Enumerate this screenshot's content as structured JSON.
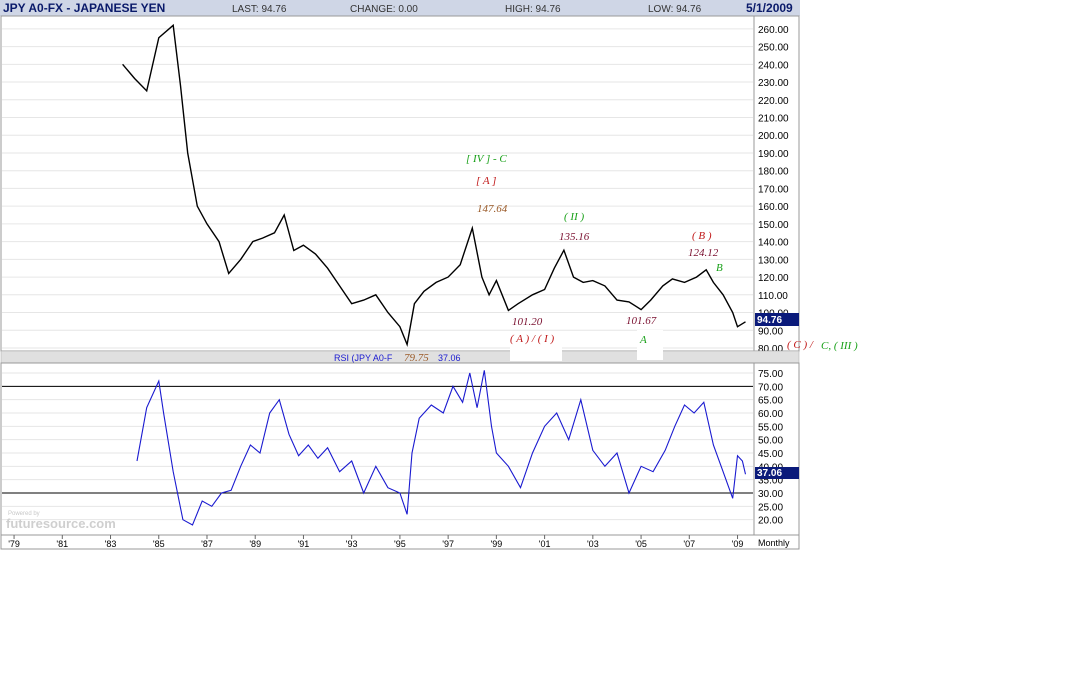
{
  "header": {
    "symbol": "JPY A0-FX - JAPANESE YEN",
    "last": "LAST: 94.76",
    "change": "CHANGE: 0.00",
    "high": "HIGH: 94.76",
    "low": "LOW: 94.76",
    "date": "5/1/2009"
  },
  "colors": {
    "header_bg": "#cfd6e6",
    "header_text": "#0a1a6a",
    "price_line": "#000000",
    "rsi_line": "#1a1ad0",
    "last_badge": "#0a1a7a",
    "wave_green": "#18a018",
    "wave_red": "#c01818",
    "wave_maroon": "#7a1030",
    "wave_orange": "#9a5a28",
    "grid": "#e6e6e6"
  },
  "price_panel": {
    "last_value_label": "94.76",
    "y_ticks": [
      "80.00",
      "90.00",
      "100.00",
      "110.00",
      "120.00",
      "130.00",
      "140.00",
      "150.00",
      "160.00",
      "170.00",
      "180.00",
      "190.00",
      "200.00",
      "210.00",
      "220.00",
      "230.00",
      "240.00",
      "250.00",
      "260.00"
    ]
  },
  "rsi_panel": {
    "label": "RSI (JPY A0-F",
    "value_text": "37.06",
    "last_value_label": "37.06",
    "y_ticks": [
      "20.00",
      "25.00",
      "30.00",
      "35.00",
      "40.00",
      "45.00",
      "50.00",
      "55.00",
      "60.00",
      "65.00",
      "70.00",
      "75.00"
    ],
    "overbought": 70,
    "oversold": 30
  },
  "x_axis": {
    "ticks": [
      "'79",
      "'81",
      "'83",
      "'85",
      "'87",
      "'89",
      "'91",
      "'93",
      "'95",
      "'97",
      "'99",
      "'01",
      "'03",
      "'05",
      "'07",
      "'09"
    ],
    "period": "Monthly"
  },
  "annotations": {
    "wave_IV_C": "[ IV ] - C",
    "wave_A_bracket": "[ A ]",
    "high_147": "147.64",
    "wave_II": "( II )",
    "high_135": "135.16",
    "wave_B_paren": "( B )",
    "high_124": "124.12",
    "wave_B": "B",
    "low_101_20": "101.20",
    "wave_A_I": "( A ) / ( I )",
    "low_101_67": "101.67",
    "wave_A": "A",
    "low_79_75": "79.75",
    "wave_C_red": "( C ) /",
    "wave_C_III": "C, ( III )"
  },
  "watermark": {
    "powered": "Powered by",
    "brand": "futuresource.com"
  },
  "chart_data": [
    {
      "type": "line",
      "title": "JPY A0-FX - JAPANESE YEN",
      "series_desc": "Japanese Yen futures, monthly",
      "ylim": [
        80,
        265
      ],
      "x": [
        1983.5,
        1984.0,
        1984.5,
        1985.0,
        1985.6,
        1985.9,
        1986.2,
        1986.6,
        1987.0,
        1987.5,
        1987.9,
        1988.4,
        1988.9,
        1989.3,
        1989.8,
        1990.2,
        1990.6,
        1991.0,
        1991.5,
        1992.0,
        1992.5,
        1993.0,
        1993.5,
        1994.0,
        1994.5,
        1995.0,
        1995.3,
        1995.6,
        1996.0,
        1996.5,
        1997.0,
        1997.5,
        1998.0,
        1998.4,
        1998.7,
        1999.0,
        1999.5,
        1999.9,
        2000.5,
        2001.0,
        2001.4,
        2001.8,
        2002.2,
        2002.6,
        2003.0,
        2003.5,
        2004.0,
        2004.5,
        2005.0,
        2005.4,
        2005.9,
        2006.3,
        2006.8,
        2007.3,
        2007.7,
        2008.0,
        2008.4,
        2008.8,
        2009.0,
        2009.33
      ],
      "y": [
        240,
        232,
        225,
        255,
        262,
        228,
        190,
        160,
        150,
        140,
        122,
        130,
        140,
        142,
        145,
        155,
        135,
        138,
        133,
        125,
        115,
        105,
        107,
        110,
        100,
        92,
        82,
        105,
        112,
        117,
        120,
        127,
        147.64,
        120,
        110,
        118,
        101.2,
        105,
        110,
        113,
        125,
        135.16,
        120,
        117,
        118,
        115,
        107,
        106,
        101.67,
        107,
        115,
        119,
        117,
        120,
        124.12,
        117,
        110,
        100,
        92,
        94.76
      ]
    },
    {
      "type": "line",
      "title": "RSI (JPY A0-F",
      "ylim": [
        15,
        78
      ],
      "x": [
        1984.1,
        1984.5,
        1985.0,
        1985.2,
        1985.6,
        1986.0,
        1986.4,
        1986.8,
        1987.2,
        1987.6,
        1988.0,
        1988.4,
        1988.8,
        1989.2,
        1989.6,
        1990.0,
        1990.4,
        1990.8,
        1991.2,
        1991.6,
        1992.0,
        1992.5,
        1993.0,
        1993.5,
        1994.0,
        1994.5,
        1995.0,
        1995.3,
        1995.5,
        1995.8,
        1996.3,
        1996.8,
        1997.2,
        1997.6,
        1997.9,
        1998.2,
        1998.5,
        1998.8,
        1999.0,
        1999.5,
        2000.0,
        2000.5,
        2001.0,
        2001.5,
        2002.0,
        2002.5,
        2003.0,
        2003.5,
        2004.0,
        2004.5,
        2005.0,
        2005.5,
        2006.0,
        2006.4,
        2006.8,
        2007.2,
        2007.6,
        2008.0,
        2008.4,
        2008.8,
        2009.0,
        2009.2,
        2009.33
      ],
      "y": [
        42,
        62,
        72,
        60,
        38,
        20,
        18,
        27,
        25,
        30,
        31,
        40,
        48,
        45,
        60,
        65,
        52,
        44,
        48,
        43,
        47,
        38,
        42,
        30,
        40,
        32,
        30,
        22,
        45,
        58,
        63,
        60,
        70,
        64,
        75,
        62,
        76,
        55,
        45,
        40,
        32,
        45,
        55,
        60,
        50,
        65,
        46,
        40,
        45,
        30,
        40,
        38,
        46,
        55,
        63,
        60,
        64,
        48,
        38,
        28,
        44,
        42,
        37.06
      ]
    }
  ]
}
